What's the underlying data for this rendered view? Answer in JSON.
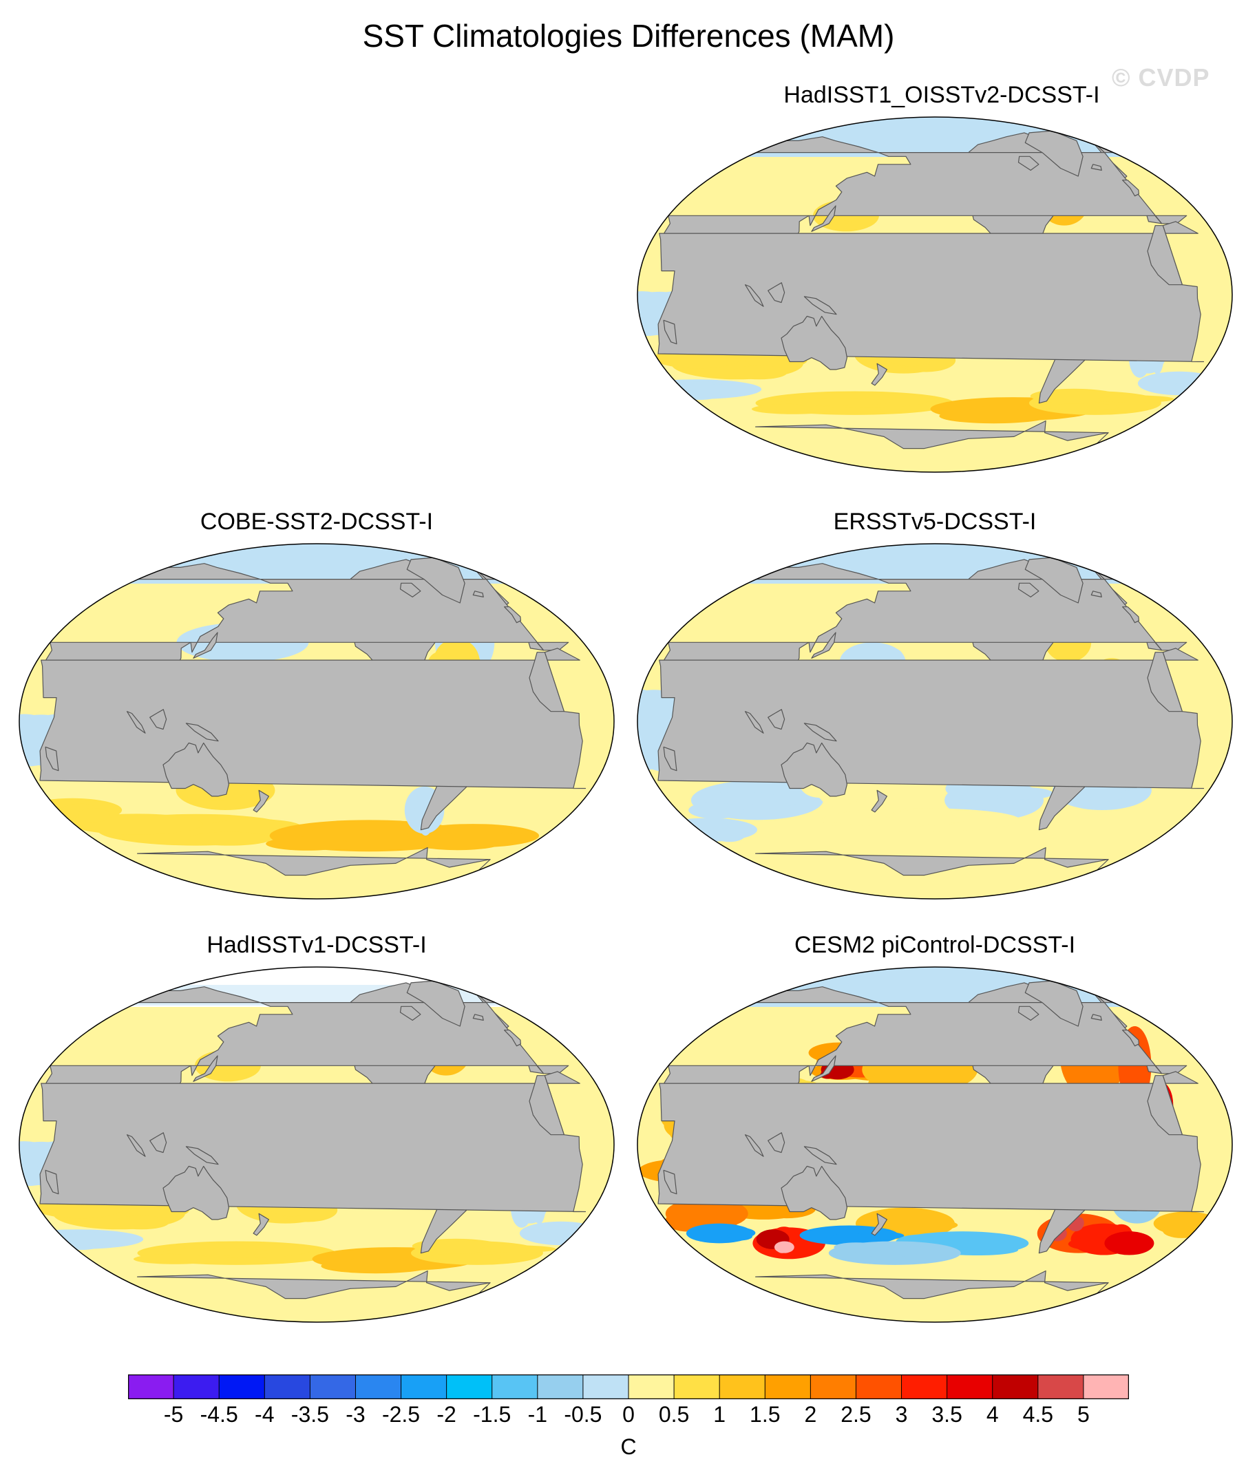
{
  "title": "SST Climatologies Differences (MAM)",
  "watermark": "© CVDP",
  "panels": [
    {
      "title": "HadISST1_OISSTv2-DCSST-I",
      "pattern": "weak-warm"
    },
    {
      "title": "COBE-SST2-DCSST-I",
      "pattern": "weak-mixed"
    },
    {
      "title": "ERSSTv5-DCSST-I",
      "pattern": "weak-cool"
    },
    {
      "title": "HadISSTv1-DCSST-I",
      "pattern": "weak-warm"
    },
    {
      "title": "CESM2 piControl-DCSST-I",
      "pattern": "strong"
    }
  ],
  "colorbar": {
    "unit": "C",
    "ticks": [
      "-5",
      "-4.5",
      "-4",
      "-3.5",
      "-3",
      "-2.5",
      "-2",
      "-1.5",
      "-1",
      "-0.5",
      "0",
      "0.5",
      "1",
      "1.5",
      "2",
      "2.5",
      "3",
      "3.5",
      "4",
      "4.5",
      "5"
    ],
    "colors": [
      "#8a1cf0",
      "#3c1cf0",
      "#0018f5",
      "#2848e0",
      "#3468e6",
      "#2a86f0",
      "#18a0f6",
      "#00c0f8",
      "#58c4f4",
      "#96cfee",
      "#bfe1f5",
      "#fff59d",
      "#ffe045",
      "#ffc21c",
      "#ffa000",
      "#ff7e00",
      "#ff5200",
      "#ff1e00",
      "#e80000",
      "#c00000",
      "#d84848",
      "#ffb4b4"
    ]
  },
  "colors": {
    "land": "#b9b9b9",
    "land_edge": "#555555",
    "ocean_zero": "#fff59d"
  }
}
